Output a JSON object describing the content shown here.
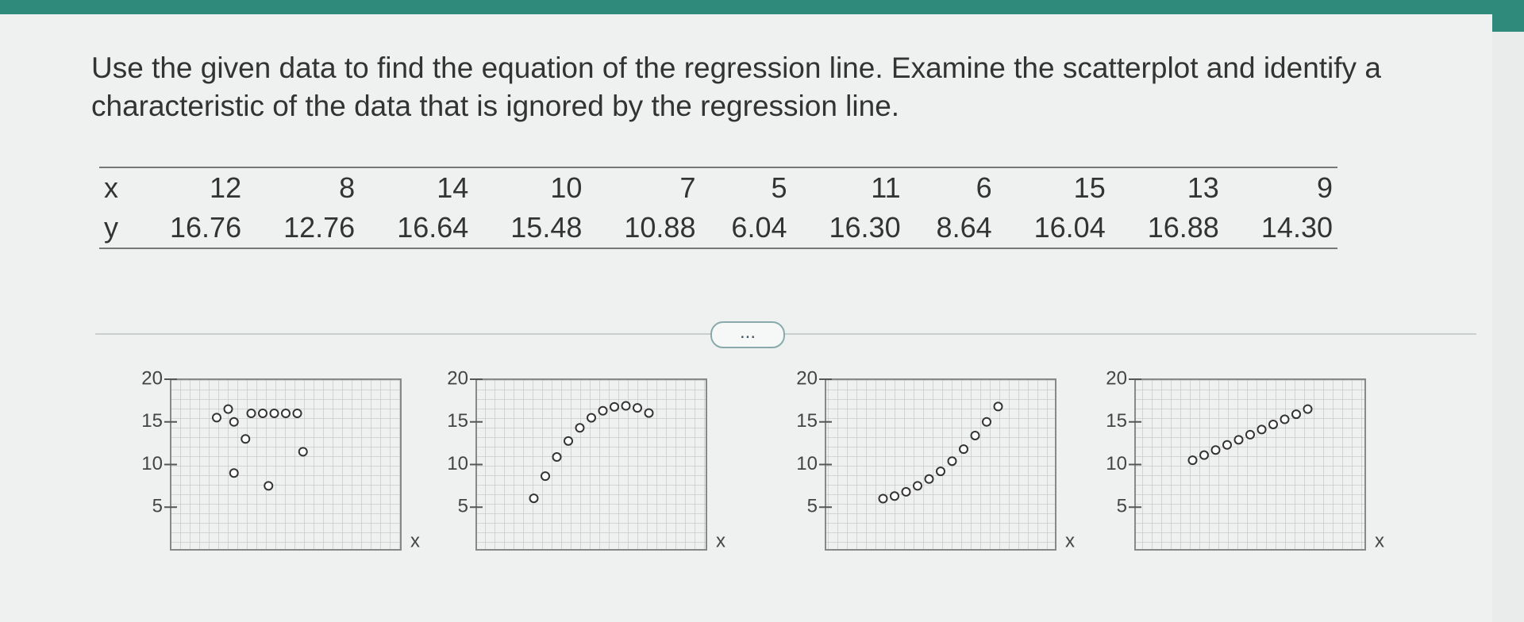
{
  "question": "Use the given data to find the equation of the regression line. Examine the scatterplot and identify a characteristic of the data that is ignored by the regression line.",
  "table": {
    "x_label": "x",
    "y_label": "y",
    "x": [
      12,
      8,
      14,
      10,
      7,
      5,
      11,
      6,
      15,
      13,
      9
    ],
    "y": [
      "16.76",
      "12.76",
      "16.64",
      "15.48",
      "10.88",
      "6.04",
      "16.30",
      "8.64",
      "16.04",
      "16.88",
      "14.30"
    ]
  },
  "more_button": "...",
  "options": [
    {
      "type": "scatter",
      "x_label": "x",
      "xlim": [
        0,
        20
      ],
      "ylim": [
        0,
        20
      ],
      "yticks": [
        5,
        10,
        15,
        20
      ],
      "points": {
        "x": [
          4,
          5,
          5.5,
          7,
          8,
          9,
          10,
          11,
          6.5,
          8.5,
          11.5,
          5.5
        ],
        "y": [
          15.5,
          16.5,
          15,
          16,
          16,
          16,
          16,
          16,
          13,
          7.5,
          11.5,
          9
        ]
      }
    },
    {
      "type": "scatter",
      "x_label": "x",
      "xlim": [
        0,
        20
      ],
      "ylim": [
        0,
        20
      ],
      "yticks": [
        5,
        10,
        15,
        20
      ],
      "points": {
        "x": [
          5,
          6,
          7,
          8,
          9,
          10,
          11,
          12,
          13,
          14,
          15
        ],
        "y": [
          6.04,
          8.64,
          10.88,
          12.76,
          14.3,
          15.48,
          16.3,
          16.76,
          16.88,
          16.64,
          16.04
        ]
      }
    },
    {
      "type": "scatter",
      "x_label": "x",
      "xlim": [
        0,
        20
      ],
      "ylim": [
        0,
        20
      ],
      "yticks": [
        5,
        10,
        15,
        20
      ],
      "points": {
        "x": [
          5,
          6,
          7,
          8,
          9,
          10,
          11,
          12,
          13,
          14,
          15
        ],
        "y": [
          6,
          6.3,
          6.8,
          7.5,
          8.3,
          9.2,
          10.4,
          11.8,
          13.4,
          15,
          16.8
        ]
      }
    },
    {
      "type": "scatter",
      "x_label": "x",
      "xlim": [
        0,
        20
      ],
      "ylim": [
        0,
        20
      ],
      "yticks": [
        5,
        10,
        15,
        20
      ],
      "points": {
        "x": [
          5,
          6,
          7,
          8,
          9,
          10,
          11,
          12,
          13,
          14,
          15
        ],
        "y": [
          10.5,
          11.1,
          11.7,
          12.3,
          12.9,
          13.5,
          14.1,
          14.7,
          15.3,
          15.9,
          16.5
        ]
      }
    }
  ]
}
